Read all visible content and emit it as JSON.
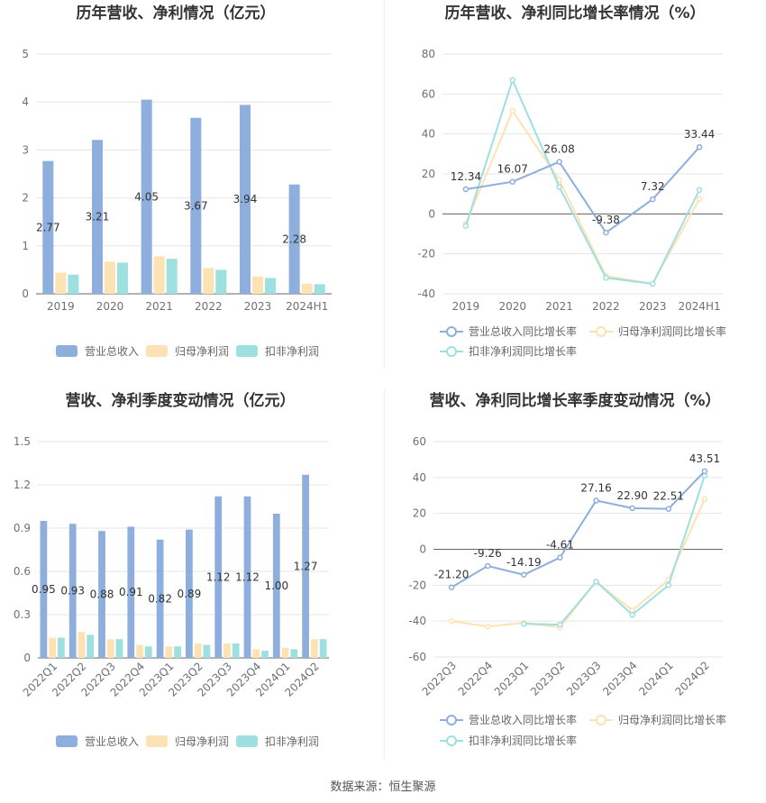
{
  "colors": {
    "revenue": "#8eaedd",
    "parent_profit": "#fde2b3",
    "deducted_profit": "#9ee0e0",
    "revenue_line": "#8eaedd",
    "parent_line": "#fde2b3",
    "deducted_line": "#9ee0e0",
    "grid": "#e6e6e6",
    "axis": "#666666"
  },
  "source": "数据来源：恒生聚源",
  "chart_data": [
    {
      "id": "annual_bar",
      "type": "bar",
      "title": "历年营收、净利情况（亿元）",
      "categories": [
        "2019",
        "2020",
        "2021",
        "2022",
        "2023",
        "2024H1"
      ],
      "ylim": [
        0,
        5
      ],
      "yticks": [
        "0",
        "1",
        "2",
        "3",
        "4",
        "5"
      ],
      "grid": true,
      "legend": "bottom",
      "series": [
        {
          "name": "营业总收入",
          "values": [
            2.77,
            3.21,
            4.05,
            3.67,
            3.94,
            2.28
          ],
          "labels": [
            "2.77",
            "3.21",
            "4.05",
            "3.67",
            "3.94",
            "2.28"
          ]
        },
        {
          "name": "归母净利润",
          "values": [
            0.44,
            0.67,
            0.78,
            0.54,
            0.36,
            0.21
          ]
        },
        {
          "name": "扣非净利润",
          "values": [
            0.4,
            0.65,
            0.73,
            0.5,
            0.33,
            0.2
          ]
        }
      ]
    },
    {
      "id": "annual_line",
      "type": "line",
      "title": "历年营收、净利同比增长率情况（%）",
      "categories": [
        "2019",
        "2020",
        "2021",
        "2022",
        "2023",
        "2024H1"
      ],
      "ylim": [
        -40,
        80
      ],
      "yticks": [
        "-40",
        "-20",
        "0",
        "20",
        "40",
        "60",
        "80"
      ],
      "grid": true,
      "legend": "bottom",
      "series": [
        {
          "name": "营业总收入同比增长率",
          "values": [
            12.34,
            16.07,
            26.08,
            -9.38,
            7.32,
            33.44
          ],
          "labels": [
            "12.34",
            "16.07",
            "26.08",
            "-9.38",
            "7.32",
            "33.44"
          ]
        },
        {
          "name": "归母净利润同比增长率",
          "values": [
            -5,
            51.5,
            17,
            -31,
            -35,
            7.5
          ]
        },
        {
          "name": "扣非净利润同比增长率",
          "values": [
            -6,
            67,
            13.5,
            -32,
            -35,
            12
          ]
        }
      ]
    },
    {
      "id": "quarter_bar",
      "type": "bar",
      "title": "营收、净利季度变动情况（亿元）",
      "categories": [
        "2022Q1",
        "2022Q2",
        "2022Q3",
        "2022Q4",
        "2023Q1",
        "2023Q2",
        "2023Q3",
        "2023Q4",
        "2024Q1",
        "2024Q2"
      ],
      "ylim": [
        0,
        1.5
      ],
      "yticks": [
        "0",
        "0.3",
        "0.6",
        "0.9",
        "1.2",
        "1.5"
      ],
      "grid": true,
      "legend": "bottom",
      "series": [
        {
          "name": "营业总收入",
          "values": [
            0.95,
            0.93,
            0.88,
            0.91,
            0.82,
            0.89,
            1.12,
            1.12,
            1.0,
            1.27
          ],
          "labels": [
            "0.95",
            "0.93",
            "0.88",
            "0.91",
            "0.82",
            "0.89",
            "1.12",
            "1.12",
            "1.00",
            "1.27"
          ]
        },
        {
          "name": "归母净利润",
          "values": [
            0.14,
            0.18,
            0.13,
            0.09,
            0.08,
            0.1,
            0.1,
            0.06,
            0.07,
            0.13
          ]
        },
        {
          "name": "扣非净利润",
          "values": [
            0.14,
            0.16,
            0.13,
            0.08,
            0.08,
            0.09,
            0.1,
            0.05,
            0.06,
            0.13
          ]
        }
      ]
    },
    {
      "id": "quarter_line",
      "type": "line",
      "title": "营收、净利同比增长率季度变动情况（%）",
      "categories": [
        "2022Q3",
        "2022Q4",
        "2023Q1",
        "2023Q2",
        "2023Q3",
        "2023Q4",
        "2024Q1",
        "2024Q2"
      ],
      "ylim": [
        -60,
        60
      ],
      "yticks": [
        "-60",
        "-40",
        "-20",
        "0",
        "20",
        "40",
        "60"
      ],
      "grid": true,
      "legend": "bottom",
      "series": [
        {
          "name": "营业总收入同比增长率",
          "values": [
            -21.2,
            -9.26,
            -14.19,
            -4.61,
            27.16,
            22.9,
            22.51,
            43.51
          ],
          "labels": [
            "-21.20",
            "-9.26",
            "-14.19",
            "-4.61",
            "27.16",
            "22.90",
            "22.51",
            "43.51"
          ]
        },
        {
          "name": "归母净利润同比增长率",
          "values": [
            -40,
            -43,
            -41,
            -43.5,
            -18,
            -34,
            -17,
            28
          ]
        },
        {
          "name": "扣非净利润同比增长率",
          "values": [
            null,
            null,
            -41.5,
            -42,
            -18,
            -36.5,
            -20,
            41
          ]
        }
      ]
    }
  ]
}
